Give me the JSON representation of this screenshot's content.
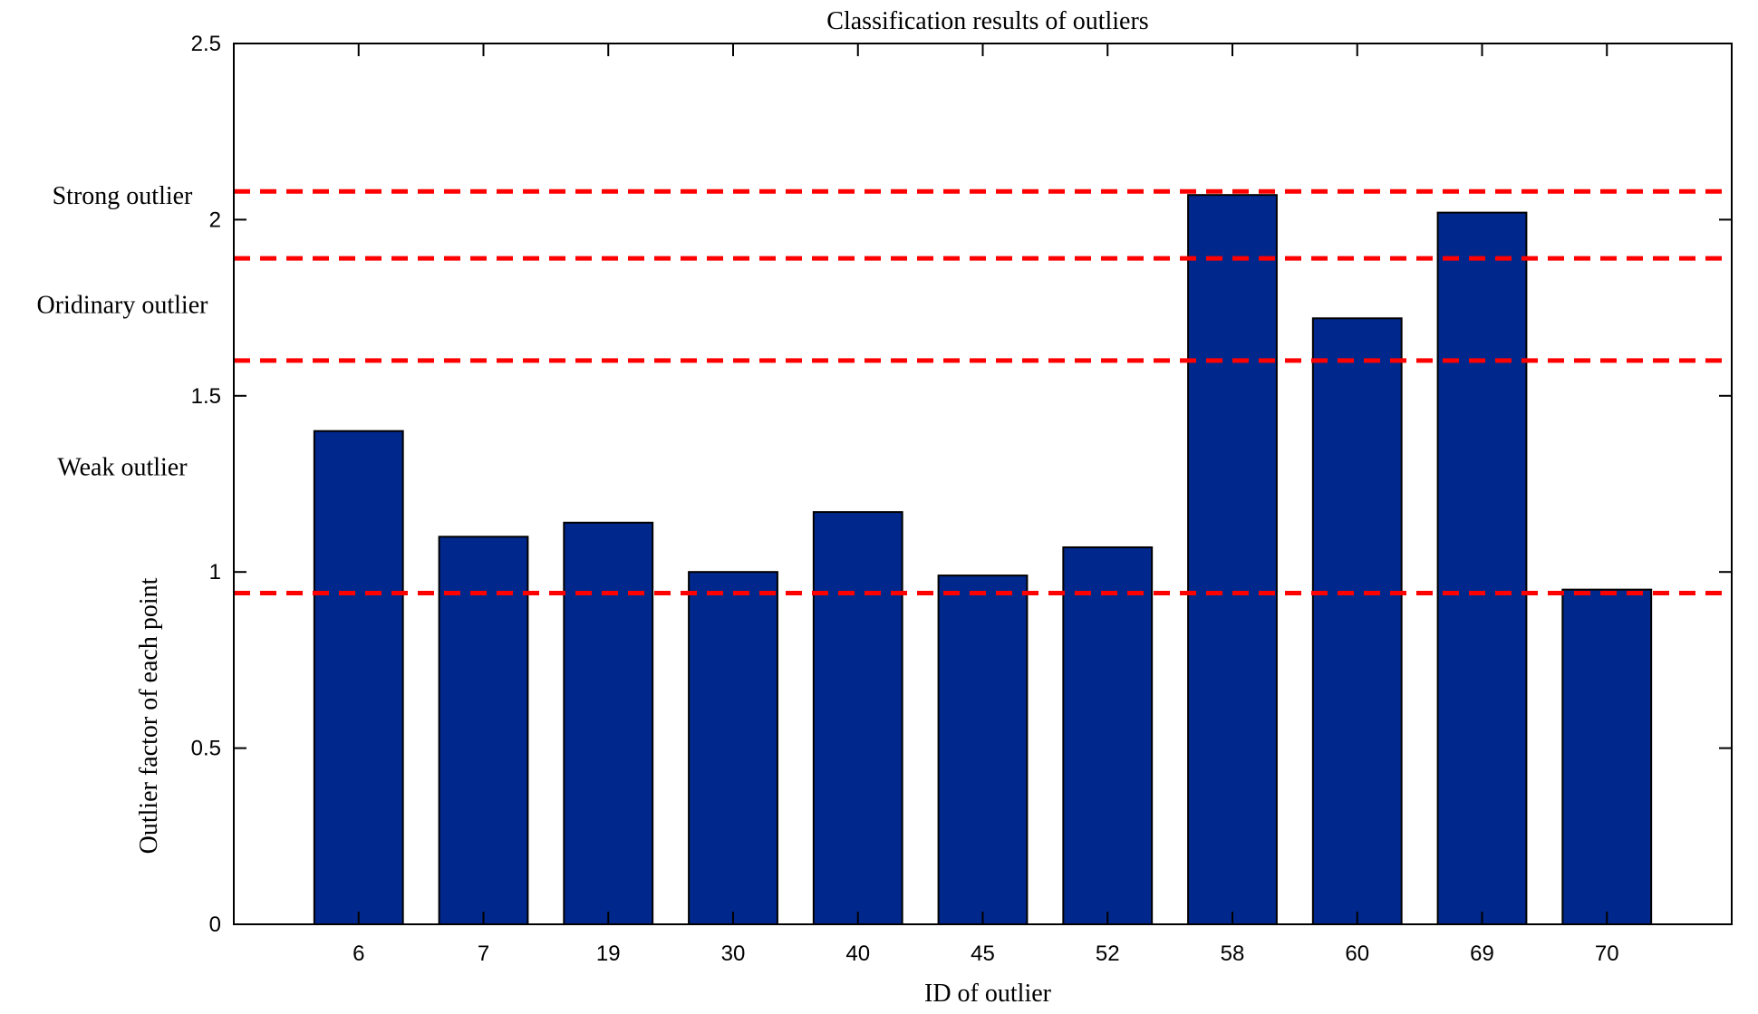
{
  "chart_data": {
    "type": "bar",
    "title": "Classification results of outliers",
    "xlabel": "ID of outlier",
    "ylabel": "Outlier factor of each point",
    "categories": [
      "6",
      "7",
      "19",
      "30",
      "40",
      "45",
      "52",
      "58",
      "60",
      "69",
      "70"
    ],
    "values": [
      1.4,
      1.1,
      1.14,
      1.0,
      1.17,
      0.99,
      1.07,
      2.07,
      1.72,
      2.02,
      0.95
    ],
    "ylim": [
      0,
      2.5
    ],
    "yticks": [
      0,
      0.5,
      1,
      1.5,
      2,
      2.5
    ],
    "ytick_labels": [
      "0",
      "0.5",
      "1",
      "1.5",
      "2",
      "2.5"
    ],
    "grid": false,
    "thresholds": [
      0.94,
      1.6,
      1.89,
      2.08
    ],
    "threshold_color": "#ff0000",
    "bar_color": "#00288c",
    "annotations": [
      {
        "text": "Strong outlier",
        "y": 2.07
      },
      {
        "text": "Oridinary outlier",
        "y": 1.76
      },
      {
        "text": "Weak outlier",
        "y": 1.3
      }
    ]
  }
}
